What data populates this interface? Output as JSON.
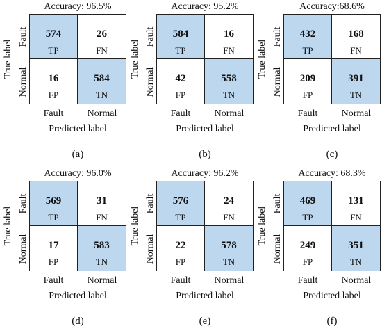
{
  "colors": {
    "highlight": "#bdd7ee",
    "plain": "#ffffff",
    "border": "#222222"
  },
  "chart_data": [
    {
      "type": "heatmap",
      "caption": "(a)",
      "title": "Accuracy: 96.5%",
      "xlabel": "Predicted label",
      "ylabel": "True label",
      "x_categories": [
        "Fault",
        "Normal"
      ],
      "y_categories": [
        "Fault",
        "Normal"
      ],
      "matrix": [
        [
          574,
          26
        ],
        [
          16,
          584
        ]
      ],
      "cell_labels": [
        [
          "TP",
          "FN"
        ],
        [
          "FP",
          "TN"
        ]
      ]
    },
    {
      "type": "heatmap",
      "caption": "(b)",
      "title": "Accuracy: 95.2%",
      "xlabel": "Predicted label",
      "ylabel": "True label",
      "x_categories": [
        "Fault",
        "Normal"
      ],
      "y_categories": [
        "Fault",
        "Normal"
      ],
      "matrix": [
        [
          584,
          16
        ],
        [
          42,
          558
        ]
      ],
      "cell_labels": [
        [
          "TP",
          "FN"
        ],
        [
          "FP",
          "TN"
        ]
      ]
    },
    {
      "type": "heatmap",
      "caption": "(c)",
      "title": "Accuracy:68.6%",
      "xlabel": "Predicted label",
      "ylabel": "True label",
      "x_categories": [
        "Fault",
        "Normal"
      ],
      "y_categories": [
        "Fault",
        "Normal"
      ],
      "matrix": [
        [
          432,
          168
        ],
        [
          209,
          391
        ]
      ],
      "cell_labels": [
        [
          "TP",
          "FN"
        ],
        [
          "FP",
          "TN"
        ]
      ]
    },
    {
      "type": "heatmap",
      "caption": "(d)",
      "title": "Accuracy: 96.0%",
      "xlabel": "Predicted label",
      "ylabel": "True label",
      "x_categories": [
        "Fault",
        "Normal"
      ],
      "y_categories": [
        "Fault",
        "Normal"
      ],
      "matrix": [
        [
          569,
          31
        ],
        [
          17,
          583
        ]
      ],
      "cell_labels": [
        [
          "TP",
          "FN"
        ],
        [
          "FP",
          "TN"
        ]
      ]
    },
    {
      "type": "heatmap",
      "caption": "(e)",
      "title": "Accuracy: 96.2%",
      "xlabel": "Predicted label",
      "ylabel": "True label",
      "x_categories": [
        "Fault",
        "Normal"
      ],
      "y_categories": [
        "Fault",
        "Normal"
      ],
      "matrix": [
        [
          576,
          24
        ],
        [
          22,
          578
        ]
      ],
      "cell_labels": [
        [
          "TP",
          "FN"
        ],
        [
          "FP",
          "TN"
        ]
      ]
    },
    {
      "type": "heatmap",
      "caption": "(f)",
      "title": "Accuracy: 68.3%",
      "xlabel": "Predicted label",
      "ylabel": "True label",
      "x_categories": [
        "Fault",
        "Normal"
      ],
      "y_categories": [
        "Fault",
        "Normal"
      ],
      "matrix": [
        [
          469,
          131
        ],
        [
          249,
          351
        ]
      ],
      "cell_labels": [
        [
          "TP",
          "FN"
        ],
        [
          "FP",
          "TN"
        ]
      ]
    }
  ]
}
